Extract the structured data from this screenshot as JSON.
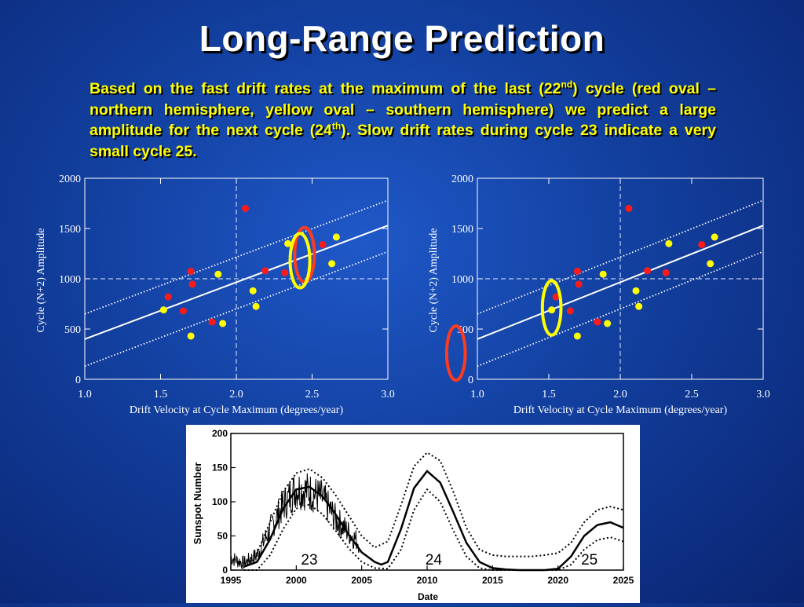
{
  "slide": {
    "title": "Long-Range Prediction",
    "text_parts": [
      "Based on the fast drift rates at the maximum of the last (22",
      "nd",
      ") cycle (red oval – northern hemisphere, yellow oval – southern hemisphere) we predict a large amplitude for the next cycle (24",
      "th",
      "). Slow drift rates during cycle 23 indicate a very small cycle 25."
    ]
  },
  "colors": {
    "northern": "#ff1a1a",
    "southern": "#ffff00",
    "oval_red": "#ff3b1f",
    "oval_yellow": "#ffff00",
    "fit_line": "#ffffff",
    "background": "#1a4db8"
  },
  "chart_data": [
    {
      "type": "scatter",
      "xlabel": "Drift Velocity at Cycle Maximum (degrees/year)",
      "ylabel": "Cycle (N+2) Amplitude",
      "xlim": [
        1.0,
        3.0
      ],
      "ylim": [
        0,
        2000
      ],
      "xticks": [
        "1.0",
        "1.5",
        "2.0",
        "2.5",
        "3.0"
      ],
      "yticks": [
        "0",
        "500",
        "1000",
        "1500",
        "2000"
      ],
      "reference_lines": {
        "x": 2.0,
        "y": 1000
      },
      "fit": {
        "x": [
          1.0,
          3.0
        ],
        "y": [
          400,
          1530
        ]
      },
      "band": {
        "lower": {
          "x": [
            1.0,
            3.0
          ],
          "y": [
            130,
            1270
          ]
        },
        "upper": {
          "x": [
            1.0,
            3.0
          ],
          "y": [
            650,
            1780
          ]
        }
      },
      "series": [
        {
          "x": [
            1.55,
            1.7,
            1.71,
            1.65,
            1.84,
            2.06,
            2.19,
            2.32,
            2.57
          ],
          "y": [
            820,
            1075,
            945,
            680,
            570,
            1700,
            1080,
            1060,
            1340
          ]
        },
        {
          "x": [
            1.52,
            1.7,
            1.88,
            1.91,
            2.11,
            2.13,
            2.34,
            2.63,
            2.66
          ],
          "y": [
            690,
            430,
            1045,
            555,
            880,
            725,
            1350,
            1150,
            1415
          ]
        }
      ],
      "ovals": [
        {
          "color": "oval_red",
          "cx": 2.45,
          "cy": 1240,
          "rx": 0.065,
          "ry": 270
        },
        {
          "color": "oval_yellow",
          "cx": 2.42,
          "cy": 1180,
          "rx": 0.065,
          "ry": 270
        }
      ]
    },
    {
      "type": "scatter",
      "xlabel": "Drift Velocity at Cycle Maximum (degrees/year)",
      "ylabel": "Cycle (N+2) Amplitude",
      "xlim": [
        1.0,
        3.0
      ],
      "ylim": [
        0,
        2000
      ],
      "xticks": [
        "1.0",
        "1.5",
        "2.0",
        "2.5",
        "3.0"
      ],
      "yticks": [
        "0",
        "500",
        "1000",
        "1500",
        "2000"
      ],
      "reference_lines": {
        "x": 2.0,
        "y": 1000
      },
      "fit": {
        "x": [
          1.0,
          3.0
        ],
        "y": [
          400,
          1530
        ]
      },
      "band": {
        "lower": {
          "x": [
            1.0,
            3.0
          ],
          "y": [
            130,
            1270
          ]
        },
        "upper": {
          "x": [
            1.0,
            3.0
          ],
          "y": [
            650,
            1780
          ]
        }
      },
      "series": [
        {
          "x": [
            1.55,
            1.7,
            1.71,
            1.65,
            1.84,
            2.06,
            2.19,
            2.32,
            2.57
          ],
          "y": [
            820,
            1075,
            945,
            680,
            570,
            1700,
            1080,
            1060,
            1340
          ]
        },
        {
          "x": [
            1.52,
            1.7,
            1.88,
            1.91,
            2.11,
            2.13,
            2.34,
            2.63,
            2.66
          ],
          "y": [
            690,
            430,
            1045,
            555,
            880,
            725,
            1350,
            1150,
            1415
          ]
        }
      ],
      "ovals": [
        {
          "color": "oval_yellow",
          "cx": 1.52,
          "cy": 710,
          "rx": 0.065,
          "ry": 270
        },
        {
          "color": "oval_red",
          "cx": 0.85,
          "cy": 260,
          "rx": 0.065,
          "ry": 270
        }
      ]
    },
    {
      "type": "line",
      "xlabel": "Date",
      "ylabel": "Sunspot Number",
      "xlim": [
        1995,
        2025
      ],
      "ylim": [
        0,
        200
      ],
      "xticks": [
        "1995",
        "2000",
        "2005",
        "2010",
        "2015",
        "2020",
        "2025"
      ],
      "yticks": [
        "0",
        "50",
        "100",
        "150",
        "200"
      ],
      "cycle_labels": [
        {
          "text": "23",
          "x": 2001.0,
          "y": 8
        },
        {
          "text": "24",
          "x": 2010.5,
          "y": 8
        },
        {
          "text": "25",
          "x": 2022.4,
          "y": 8
        }
      ],
      "prediction": {
        "x": [
          1996,
          1997,
          1998,
          1999,
          2000,
          2001,
          2002,
          2003,
          2004,
          2005,
          2006,
          2006.5,
          2007,
          2008,
          2009,
          2010,
          2011,
          2012,
          2013,
          2014,
          2015,
          2016,
          2017,
          2018,
          2019,
          2020,
          2021,
          2022,
          2023,
          2024,
          2025
        ],
        "y": [
          5,
          12,
          45,
          90,
          118,
          122,
          108,
          82,
          52,
          26,
          12,
          8,
          12,
          60,
          120,
          145,
          128,
          85,
          40,
          12,
          3,
          1,
          0,
          0,
          0,
          2,
          20,
          50,
          66,
          70,
          62
        ]
      },
      "upper_bound": {
        "x": [
          1996,
          1997,
          1998,
          1999,
          2000,
          2001,
          2002,
          2003,
          2004,
          2005,
          2006,
          2007,
          2008,
          2009,
          2010,
          2011,
          2012,
          2013,
          2014,
          2015,
          2016,
          2017,
          2018,
          2019,
          2020,
          2021,
          2022,
          2023,
          2024,
          2025
        ],
        "y": [
          10,
          25,
          70,
          115,
          142,
          148,
          135,
          110,
          80,
          50,
          33,
          42,
          95,
          152,
          172,
          160,
          115,
          62,
          30,
          22,
          20,
          20,
          20,
          22,
          25,
          40,
          70,
          88,
          93,
          88
        ]
      },
      "lower_bound": {
        "x": [
          1996,
          1997,
          1998,
          1999,
          2000,
          2001,
          2002,
          2003,
          2004,
          2005,
          2006,
          2007,
          2008,
          2009,
          2010,
          2011,
          2012,
          2013,
          2014,
          2015,
          2016,
          2017,
          2018,
          2019,
          2020,
          2021,
          2022,
          2023,
          2024,
          2025
        ],
        "y": [
          0,
          0,
          22,
          60,
          90,
          96,
          82,
          58,
          32,
          12,
          3,
          2,
          30,
          88,
          118,
          100,
          58,
          20,
          3,
          0,
          0,
          0,
          0,
          0,
          0,
          8,
          30,
          44,
          48,
          42
        ]
      },
      "observed": {
        "x_start": 1995.0,
        "x_end": 2004.8,
        "base": {
          "x": [
            1995,
            1996,
            1997,
            1998,
            1999,
            2000,
            2001,
            2002,
            2003,
            2004,
            2004.8
          ],
          "y": [
            18,
            10,
            22,
            60,
            95,
            120,
            115,
            105,
            75,
            55,
            40
          ]
        },
        "noise_amplitude": 22
      }
    }
  ]
}
